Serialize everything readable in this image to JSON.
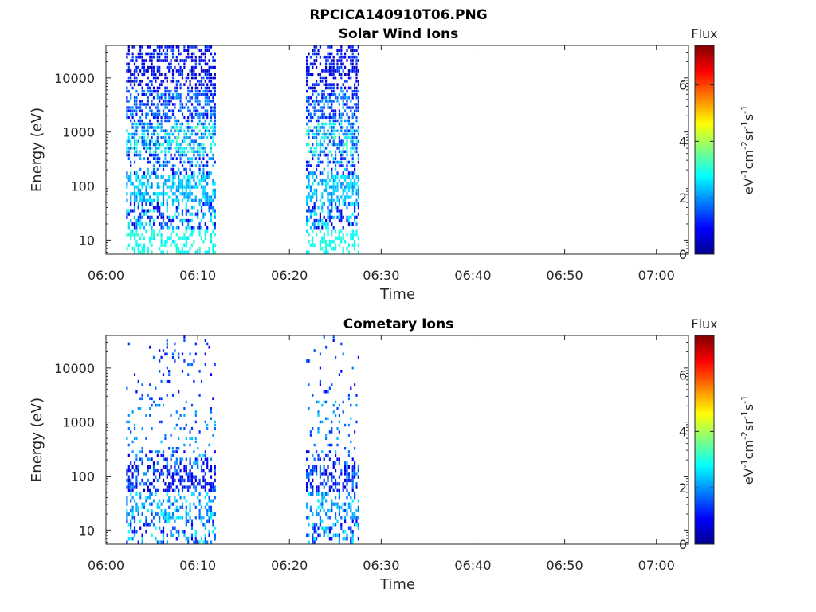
{
  "figure_title": "RPCICA140910T06.PNG",
  "colormap": [
    "#00008f",
    "#0000ff",
    "#0080ff",
    "#00ffff",
    "#80ff80",
    "#ffff00",
    "#ff8000",
    "#ff0000",
    "#800000"
  ],
  "colorbar": {
    "title": "Flux",
    "label_base": "eV",
    "label_parts": [
      {
        "t": "eV"
      },
      {
        "t": "-1",
        "sup": true
      },
      {
        "t": "cm"
      },
      {
        "t": "-2",
        "sup": true
      },
      {
        "t": "sr"
      },
      {
        "t": "-1",
        "sup": true
      },
      {
        "t": "s"
      },
      {
        "t": "-1",
        "sup": true
      }
    ],
    "range": [
      0,
      7.4
    ],
    "ticks": [
      "0",
      "2",
      "4",
      "6"
    ]
  },
  "chart_data": [
    {
      "type": "heatmap",
      "title": "Solar Wind Ions",
      "xlabel": "Time",
      "ylabel": "Energy (eV)",
      "xticks": [
        "06:00",
        "06:10",
        "06:20",
        "06:30",
        "06:40",
        "06:50",
        "07:00"
      ],
      "xlim_minutes": [
        0,
        63.5
      ],
      "yticks": [
        "10",
        "100",
        "1000",
        "10000"
      ],
      "ylim": [
        5.5,
        40000
      ],
      "yscale": "log",
      "bursts": [
        {
          "start_min": 2.2,
          "end_min": 11.8
        },
        {
          "start_min": 21.8,
          "end_min": 27.6
        }
      ],
      "bands": [
        {
          "e_lo": 5.5,
          "e_hi": 16,
          "density": 0.35,
          "c_lo": 2.6,
          "c_hi": 3.2
        },
        {
          "e_lo": 16,
          "e_hi": 50,
          "density": 0.45,
          "c_lo": 0.4,
          "c_hi": 3.0
        },
        {
          "e_lo": 50,
          "e_hi": 160,
          "density": 0.55,
          "c_lo": 1.8,
          "c_hi": 2.8
        },
        {
          "e_lo": 160,
          "e_hi": 400,
          "density": 0.45,
          "c_lo": 0.6,
          "c_hi": 2.6
        },
        {
          "e_lo": 400,
          "e_hi": 1500,
          "density": 0.6,
          "c_lo": 1.2,
          "c_hi": 3.4
        },
        {
          "e_lo": 1500,
          "e_hi": 6000,
          "density": 0.55,
          "c_lo": 0.8,
          "c_hi": 2.2
        },
        {
          "e_lo": 6000,
          "e_hi": 40000,
          "density": 0.5,
          "c_lo": 0.1,
          "c_hi": 1.6
        }
      ]
    },
    {
      "type": "heatmap",
      "title": "Cometary Ions",
      "xlabel": "Time",
      "ylabel": "Energy (eV)",
      "xticks": [
        "06:00",
        "06:10",
        "06:20",
        "06:30",
        "06:40",
        "06:50",
        "07:00"
      ],
      "xlim_minutes": [
        0,
        63.5
      ],
      "yticks": [
        "10",
        "100",
        "1000",
        "10000"
      ],
      "ylim": [
        5.5,
        40000
      ],
      "yscale": "log",
      "bursts": [
        {
          "start_min": 2.2,
          "end_min": 11.8
        },
        {
          "start_min": 21.8,
          "end_min": 27.6
        }
      ],
      "bands": [
        {
          "e_lo": 5.5,
          "e_hi": 16,
          "density": 0.35,
          "c_lo": 0.8,
          "c_hi": 3.0
        },
        {
          "e_lo": 16,
          "e_hi": 50,
          "density": 0.4,
          "c_lo": 1.4,
          "c_hi": 2.8
        },
        {
          "e_lo": 50,
          "e_hi": 160,
          "density": 0.45,
          "c_lo": 0.3,
          "c_hi": 2.0
        },
        {
          "e_lo": 160,
          "e_hi": 300,
          "density": 0.3,
          "c_lo": 0.6,
          "c_hi": 2.4
        },
        {
          "e_lo": 300,
          "e_hi": 2500,
          "density": 0.12,
          "c_lo": 1.2,
          "c_hi": 2.4
        },
        {
          "e_lo": 2500,
          "e_hi": 40000,
          "density": 0.06,
          "c_lo": 0.8,
          "c_hi": 1.8
        }
      ]
    }
  ]
}
